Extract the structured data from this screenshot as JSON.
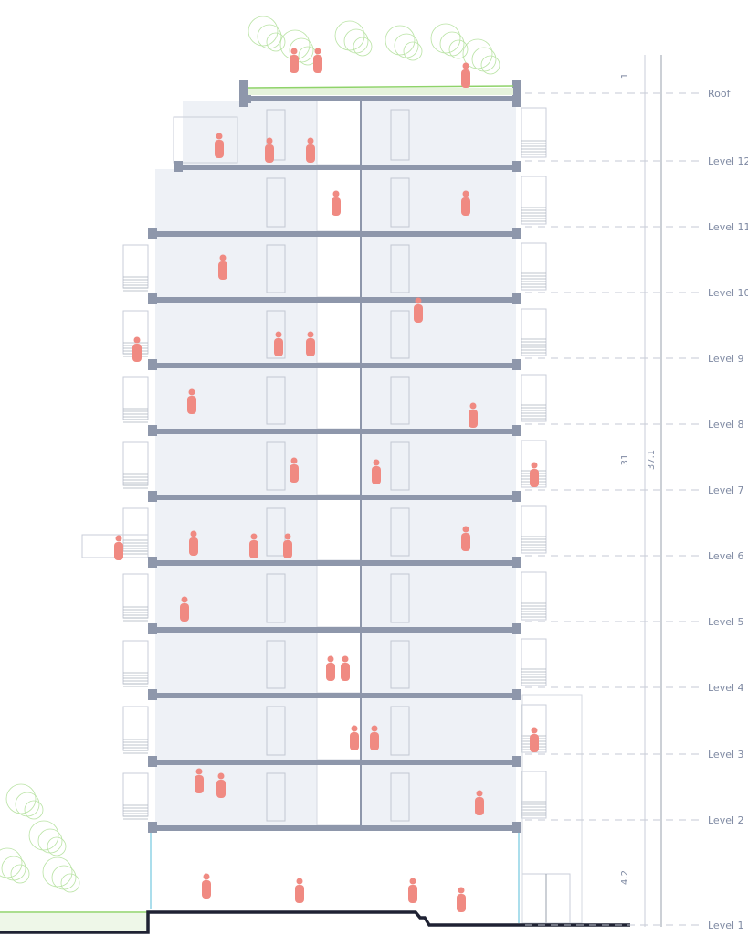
{
  "levels": [
    {
      "label": "Roof",
      "elevation_line": true
    },
    {
      "label": "Level 12"
    },
    {
      "label": "Level 11"
    },
    {
      "label": "Level 10"
    },
    {
      "label": "Level 9"
    },
    {
      "label": "Level 8"
    },
    {
      "label": "Level 7"
    },
    {
      "label": "Level 6"
    },
    {
      "label": "Level 5"
    },
    {
      "label": "Level 4"
    },
    {
      "label": "Level 3"
    },
    {
      "label": "Level 2"
    },
    {
      "label": "Level 1"
    }
  ],
  "dimensions": {
    "parapet": "1",
    "building_height": "31",
    "total_height": "37.1",
    "ground_floor_height": "4.2"
  },
  "colors": {
    "slab": "#8e97ab",
    "room_fill": "#eef1f6",
    "figure": "#f08a82",
    "glass": "#8fd3e6",
    "ground": "#1f2233",
    "green": "#8fd36a",
    "label": "#7f8aa3"
  }
}
